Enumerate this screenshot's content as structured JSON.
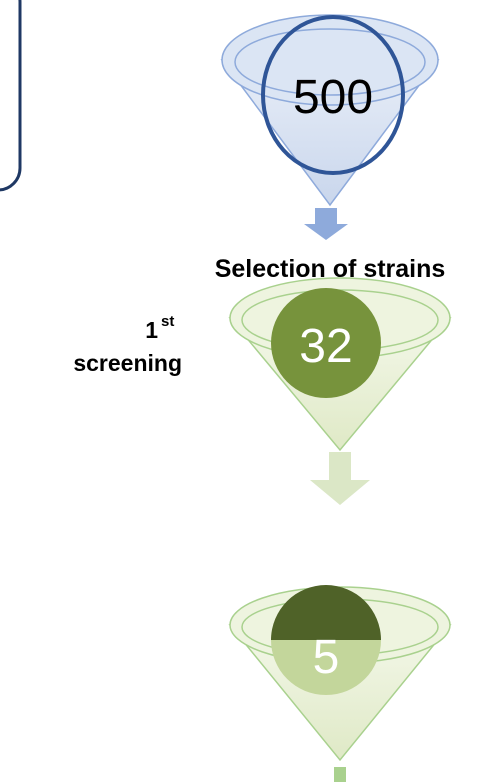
{
  "funnels": [
    {
      "label": "500"
    },
    {
      "label": "32"
    },
    {
      "label": "5"
    }
  ],
  "caption": "Selection of strains",
  "stage": {
    "number": "1",
    "suffix": "st",
    "name": "screening"
  }
}
